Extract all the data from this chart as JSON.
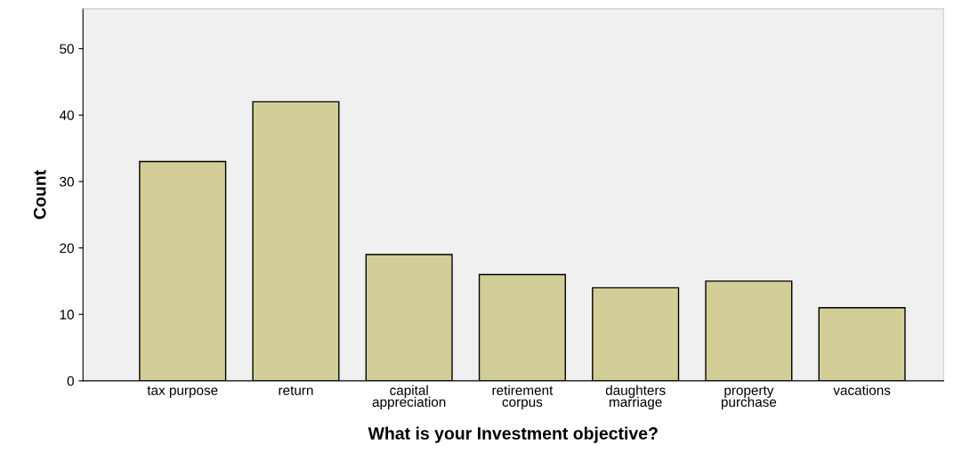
{
  "chart_data": {
    "type": "bar",
    "xlabel": "What is your Investment objective?",
    "ylabel": "Count",
    "categories": [
      "tax purpose",
      "return",
      "capital\nappreciation",
      "retirement\ncorpus",
      "daughters\nmarriage",
      "property\npurchase",
      "vacations"
    ],
    "values": [
      33,
      42,
      19,
      16,
      14,
      15,
      11
    ],
    "color": "#d3ce97",
    "ylim": [
      0,
      56
    ],
    "yticks": [
      0,
      10,
      20,
      30,
      40,
      50
    ],
    "grid": false
  }
}
